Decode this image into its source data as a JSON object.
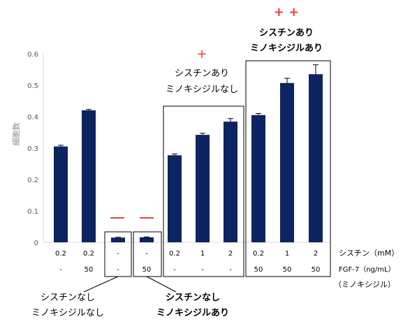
{
  "chart_data": {
    "type": "bar",
    "ylabel": "細胞数",
    "ylim": [
      0,
      0.6
    ],
    "yticks": [
      "0",
      "0.1",
      "0.2",
      "0.3",
      "0.4",
      "0.5",
      "0.6"
    ],
    "categories": [
      {
        "cystine": "0.2",
        "fgf": "-"
      },
      {
        "cystine": "0.2",
        "fgf": "50"
      },
      {
        "cystine": "-",
        "fgf": "-"
      },
      {
        "cystine": "-",
        "fgf": "50"
      },
      {
        "cystine": "0.2",
        "fgf": "-"
      },
      {
        "cystine": "1",
        "fgf": "-"
      },
      {
        "cystine": "2",
        "fgf": "-"
      },
      {
        "cystine": "0.2",
        "fgf": "50"
      },
      {
        "cystine": "1",
        "fgf": "50"
      },
      {
        "cystine": "2",
        "fgf": "50"
      }
    ],
    "values": [
      0.305,
      0.42,
      0.015,
      0.016,
      0.277,
      0.342,
      0.384,
      0.405,
      0.507,
      0.535
    ],
    "errors": [
      0.004,
      0.003,
      0.001,
      0.001,
      0.004,
      0.005,
      0.01,
      0.005,
      0.015,
      0.03
    ],
    "bar_color": "#0c2461",
    "row_labels": {
      "cystine": "シスチン（mM）",
      "fgf": "FGF-7（ng/mL）",
      "fgf_sub": "（ミノキシジル）"
    },
    "annotations": {
      "minus_mark": "ー",
      "plus_mark": "+",
      "plusplus_mark": "+ +",
      "group_a_line1": "シスチンなし",
      "group_a_line2": "ミノキシジルなし",
      "group_b_line1": "シスチンなし",
      "group_b_line2": "ミノキシジルあり",
      "group_c_line1": "シスチンあり",
      "group_c_line2": "ミノキシジルなし",
      "group_d_line1": "シスチンあり",
      "group_d_line2": "ミノキシジルあり"
    },
    "mark_color": "#e8413c"
  }
}
